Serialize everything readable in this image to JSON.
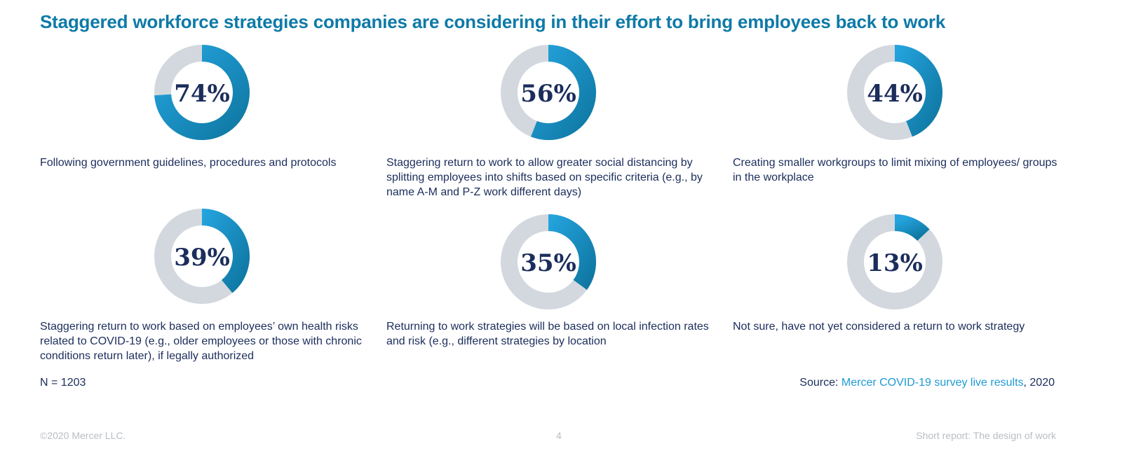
{
  "title": "Staggered workforce strategies companies are considering in their effort to bring employees back to work",
  "colors": {
    "title": "#0e7aa7",
    "text": "#1b2d5b",
    "track": "#d3d8df",
    "arc_start": "#24a3dd",
    "arc_end": "#0f78a3",
    "footer": "#b9bec4",
    "link": "#1f9bd6"
  },
  "chart_data": {
    "type": "pie",
    "title": "Staggered workforce strategies companies are considering in their effort to bring employees back to work",
    "unit": "%",
    "items": [
      {
        "value": 74,
        "display": "74%",
        "label": "Following government guidelines, procedures and protocols"
      },
      {
        "value": 56,
        "display": "56%",
        "label": "Staggering return to work to allow greater social distancing by splitting employees into shifts based on specific criteria (e.g., by name A-M and P-Z work different days)"
      },
      {
        "value": 44,
        "display": "44%",
        "label": "Creating smaller workgroups to limit mixing of employees/ groups in the workplace"
      },
      {
        "value": 39,
        "display": "39%",
        "label": "Staggering return to work based on employees’ own health risks related to COVID-19 (e.g., older employees or those with chronic conditions return later), if legally authorized"
      },
      {
        "value": 35,
        "display": "35%",
        "label": "Returning to work strategies will be based on local infection rates and risk (e.g., different strategies by location"
      },
      {
        "value": 13,
        "display": "13%",
        "label": "Not sure, have not yet considered a return to work strategy"
      }
    ]
  },
  "sample_note": "N = 1203",
  "source": {
    "prefix": "Source: ",
    "link_text": "Mercer COVID-19 survey live results",
    "suffix": ", 2020"
  },
  "footer": {
    "copyright": "©2020 Mercer LLC.",
    "page_number": "4",
    "report_name": "Short report: The design of work"
  }
}
